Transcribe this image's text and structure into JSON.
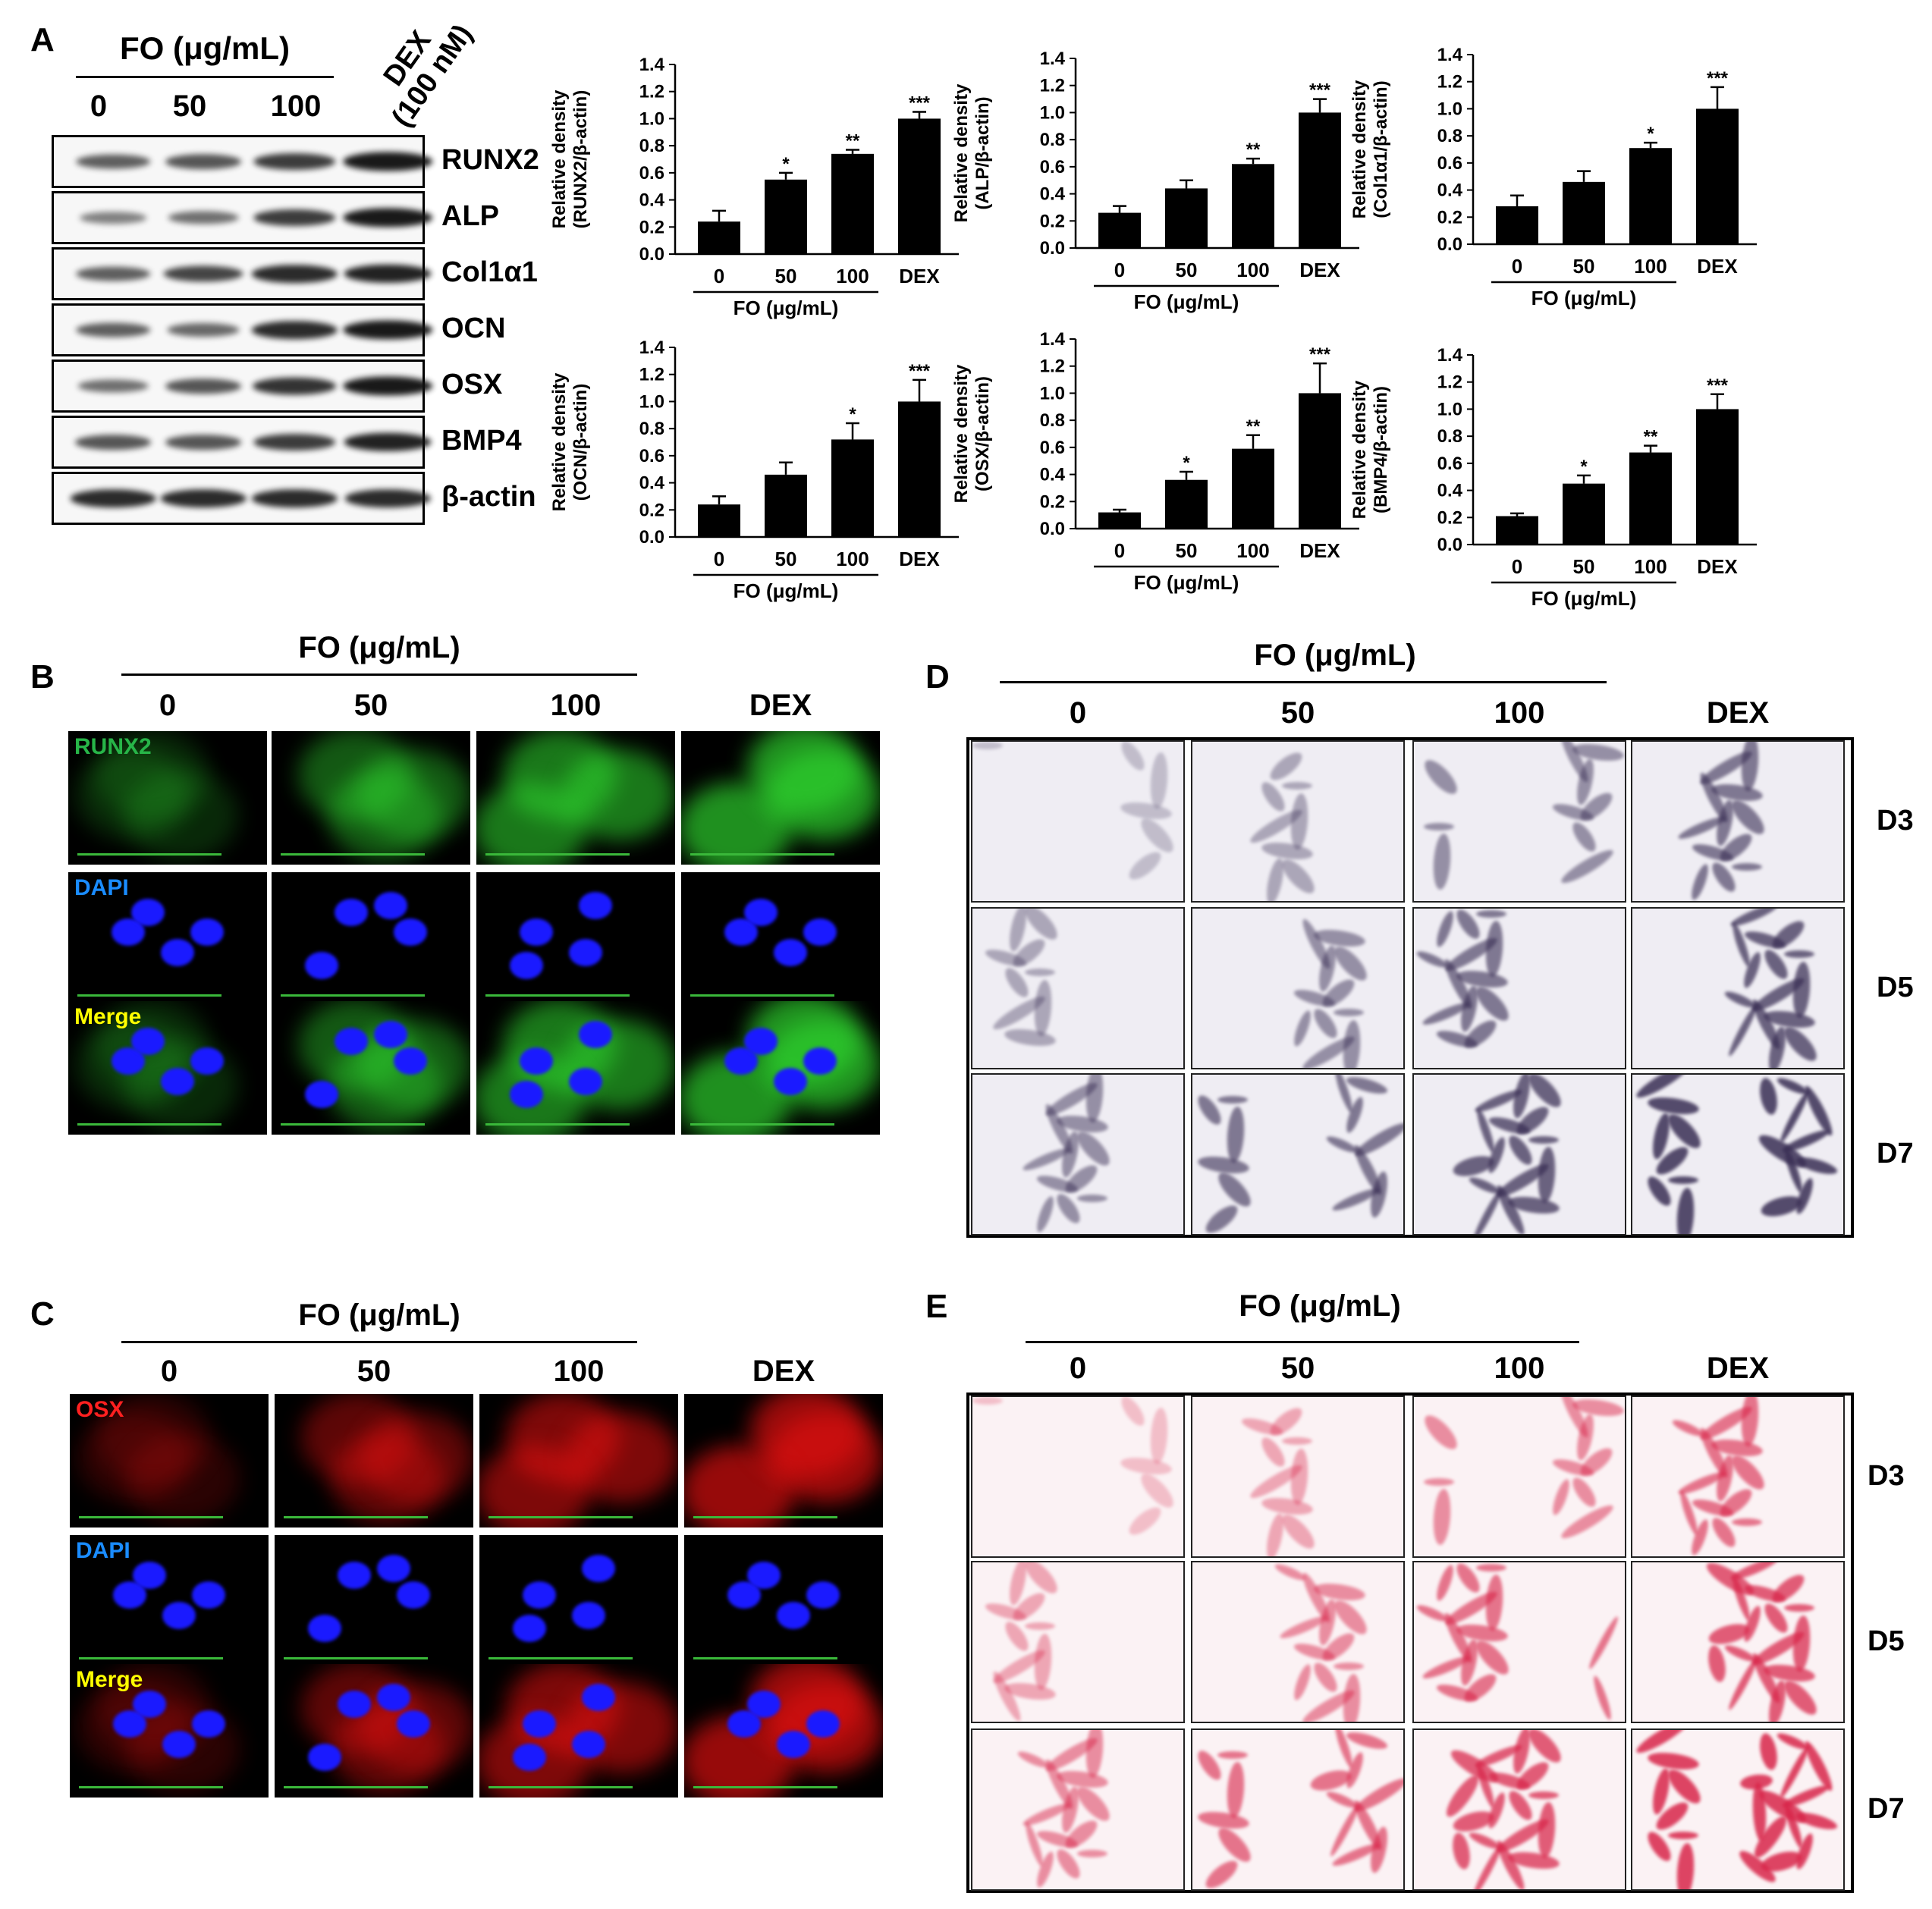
{
  "panels": {
    "a": "A",
    "b": "B",
    "c": "C",
    "d": "D",
    "e": "E"
  },
  "panel_a": {
    "header_fo": "FO  (μg/mL)",
    "dex": "DEX",
    "dex_conc": "(100 nM)",
    "doses": [
      "0",
      "50",
      "100"
    ],
    "proteins": [
      "RUNX2",
      "ALP",
      "Col1α1",
      "OCN",
      "OSX",
      "BMP4",
      "β-actin"
    ]
  },
  "panel_b": {
    "header": "FO (μg/mL)",
    "cols": [
      "0",
      "50",
      "100",
      "DEX"
    ],
    "rows": [
      "RUNX2",
      "DAPI",
      "Merge"
    ]
  },
  "panel_c": {
    "header": "FO (μg/mL)",
    "cols": [
      "0",
      "50",
      "100",
      "DEX"
    ],
    "rows": [
      "OSX",
      "DAPI",
      "Merge"
    ]
  },
  "panel_d": {
    "header": "FO (μg/mL)",
    "cols": [
      "0",
      "50",
      "100",
      "DEX"
    ],
    "days": [
      "D3",
      "D5",
      "D7"
    ]
  },
  "panel_e": {
    "header": "FO (μg/mL)",
    "cols": [
      "0",
      "50",
      "100",
      "DEX"
    ],
    "days": [
      "D3",
      "D5",
      "D7"
    ]
  },
  "colors": {
    "bar": "#000000",
    "green": "#2fd62f",
    "blue": "#1a1aff",
    "red": "#e01010",
    "alp_stain": "#3a2f55",
    "ars_stain": "#d8264a"
  },
  "chart_data": [
    {
      "type": "bar",
      "ylabel": "Relative density (RUNX2/β-actin)",
      "ylim": [
        0,
        1.4
      ],
      "ticks": [
        "0.0",
        "0.2",
        "0.4",
        "0.6",
        "0.8",
        "1.0",
        "1.2",
        "1.4"
      ],
      "categories": [
        "0",
        "50",
        "100",
        "DEX"
      ],
      "values": [
        0.24,
        0.55,
        0.74,
        1.0
      ],
      "errors": [
        0.08,
        0.05,
        0.03,
        0.05
      ],
      "sig": [
        "",
        "*",
        "**",
        "***"
      ],
      "xlabel": "FO (μg/mL)"
    },
    {
      "type": "bar",
      "ylabel": "Relative density (ALP/β-actin)",
      "ylim": [
        0,
        1.4
      ],
      "ticks": [
        "0.0",
        "0.2",
        "0.4",
        "0.6",
        "0.8",
        "1.0",
        "1.2",
        "1.4"
      ],
      "categories": [
        "0",
        "50",
        "100",
        "DEX"
      ],
      "values": [
        0.26,
        0.44,
        0.62,
        1.0
      ],
      "errors": [
        0.05,
        0.06,
        0.04,
        0.1
      ],
      "sig": [
        "",
        "",
        "**",
        "***"
      ],
      "xlabel": "FO (μg/mL)"
    },
    {
      "type": "bar",
      "ylabel": "Relative density (Col1α1/β-actin)",
      "ylim": [
        0,
        1.4
      ],
      "ticks": [
        "0.0",
        "0.2",
        "0.4",
        "0.6",
        "0.8",
        "1.0",
        "1.2",
        "1.4"
      ],
      "categories": [
        "0",
        "50",
        "100",
        "DEX"
      ],
      "values": [
        0.28,
        0.46,
        0.71,
        1.0
      ],
      "errors": [
        0.08,
        0.08,
        0.04,
        0.16
      ],
      "sig": [
        "",
        "",
        "*",
        "***"
      ],
      "xlabel": "FO (μg/mL)"
    },
    {
      "type": "bar",
      "ylabel": "Relative density (OCN/β-actin)",
      "ylim": [
        0,
        1.4
      ],
      "ticks": [
        "0.0",
        "0.2",
        "0.4",
        "0.6",
        "0.8",
        "1.0",
        "1.2",
        "1.4"
      ],
      "categories": [
        "0",
        "50",
        "100",
        "DEX"
      ],
      "values": [
        0.24,
        0.46,
        0.72,
        1.0
      ],
      "errors": [
        0.06,
        0.09,
        0.12,
        0.16
      ],
      "sig": [
        "",
        "",
        "*",
        "***"
      ],
      "xlabel": "FO (μg/mL)"
    },
    {
      "type": "bar",
      "ylabel": "Relative density (OSX/β-actin)",
      "ylim": [
        0,
        1.4
      ],
      "ticks": [
        "0.0",
        "0.2",
        "0.4",
        "0.6",
        "0.8",
        "1.0",
        "1.2",
        "1.4"
      ],
      "categories": [
        "0",
        "50",
        "100",
        "DEX"
      ],
      "values": [
        0.12,
        0.36,
        0.59,
        1.0
      ],
      "errors": [
        0.02,
        0.06,
        0.1,
        0.22
      ],
      "sig": [
        "",
        "*",
        "**",
        "***"
      ],
      "xlabel": "FO (μg/mL)"
    },
    {
      "type": "bar",
      "ylabel": "Relative density (BMP4/β-actin)",
      "ylim": [
        0,
        1.4
      ],
      "ticks": [
        "0.0",
        "0.2",
        "0.4",
        "0.6",
        "0.8",
        "1.0",
        "1.2",
        "1.4"
      ],
      "categories": [
        "0",
        "50",
        "100",
        "DEX"
      ],
      "values": [
        0.21,
        0.45,
        0.68,
        1.0
      ],
      "errors": [
        0.02,
        0.06,
        0.05,
        0.11
      ],
      "sig": [
        "",
        "*",
        "**",
        "***"
      ],
      "xlabel": "FO (μg/mL)"
    }
  ]
}
